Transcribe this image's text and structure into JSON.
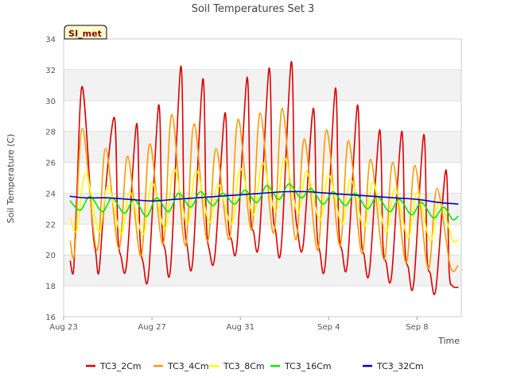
{
  "chart_data": {
    "type": "line",
    "title": "Soil Temperatures Set 3",
    "xlabel": "Time",
    "ylabel": "Soil Temperature (C)",
    "badge": "SI_met",
    "xlim": [
      0,
      18
    ],
    "ylim": [
      16,
      34
    ],
    "x_ticks": [
      {
        "value": 0,
        "label": "Aug 23"
      },
      {
        "value": 4,
        "label": "Aug 27"
      },
      {
        "value": 8,
        "label": "Aug 31"
      },
      {
        "value": 12,
        "label": "Sep 4"
      },
      {
        "value": 16,
        "label": "Sep 8"
      }
    ],
    "y_ticks": [
      16,
      18,
      20,
      22,
      24,
      26,
      28,
      30,
      32,
      34
    ],
    "grid": true,
    "legend_position": "bottom",
    "series": [
      {
        "name": "TC3_2Cm",
        "color": "#dd0000",
        "x": [
          0.3,
          0.45,
          0.6,
          0.85,
          1.3,
          1.45,
          1.6,
          1.85,
          2.3,
          2.45,
          2.6,
          2.85,
          3.3,
          3.45,
          3.6,
          3.85,
          4.3,
          4.45,
          4.6,
          4.85,
          5.3,
          5.45,
          5.6,
          5.85,
          6.3,
          6.45,
          6.6,
          6.85,
          7.3,
          7.45,
          7.6,
          7.85,
          8.3,
          8.45,
          8.6,
          8.85,
          9.3,
          9.45,
          9.6,
          9.85,
          10.3,
          10.45,
          10.6,
          10.85,
          11.3,
          11.45,
          11.6,
          11.85,
          12.3,
          12.45,
          12.6,
          12.85,
          13.3,
          13.45,
          13.6,
          13.85,
          14.3,
          14.45,
          14.6,
          14.85,
          15.3,
          15.45,
          15.6,
          15.85,
          16.3,
          16.45,
          16.6,
          16.85,
          17.3,
          17.45,
          17.6,
          17.85
        ],
        "values": [
          19.6,
          19.0,
          24.0,
          30.9,
          22.0,
          20.2,
          18.9,
          23.5,
          28.9,
          21.5,
          19.9,
          19.4,
          28.5,
          21.3,
          19.5,
          18.8,
          29.7,
          22.0,
          20.3,
          19.3,
          32.2,
          23.0,
          20.5,
          19.7,
          31.4,
          22.5,
          20.3,
          20.0,
          29.2,
          22.3,
          21.0,
          20.7,
          31.5,
          23.0,
          21.5,
          20.9,
          32.1,
          23.5,
          21.5,
          20.5,
          32.5,
          24.0,
          21.5,
          20.7,
          29.5,
          22.0,
          20.2,
          19.5,
          30.8,
          22.0,
          20.3,
          19.5,
          29.7,
          21.7,
          20.0,
          19.0,
          28.1,
          20.8,
          19.5,
          18.7,
          28.0,
          20.5,
          19.2,
          18.2,
          27.8,
          20.0,
          18.8,
          17.8,
          25.5,
          19.0,
          18.0,
          17.9
        ]
      },
      {
        "name": "TC3_4Cm",
        "color": "#ff9900",
        "x": [
          0.3,
          0.5,
          0.85,
          1.5,
          1.9,
          2.5,
          2.9,
          3.5,
          3.9,
          4.5,
          4.9,
          5.5,
          5.9,
          6.5,
          6.9,
          7.5,
          7.9,
          8.5,
          8.9,
          9.5,
          9.9,
          10.5,
          10.9,
          11.5,
          11.9,
          12.5,
          12.9,
          13.5,
          13.9,
          14.5,
          14.9,
          15.5,
          15.9,
          16.5,
          16.9,
          17.5,
          17.85
        ],
        "values": [
          20.9,
          20.2,
          28.2,
          20.3,
          26.9,
          20.4,
          26.4,
          19.9,
          27.2,
          20.7,
          29.1,
          20.6,
          28.5,
          20.9,
          26.9,
          21.0,
          28.8,
          21.6,
          29.2,
          21.4,
          29.5,
          21.0,
          27.5,
          20.3,
          28.1,
          20.6,
          27.4,
          20.1,
          26.2,
          19.7,
          26.0,
          19.5,
          25.8,
          19.1,
          24.3,
          19.3,
          19.3
        ]
      },
      {
        "name": "TC3_8Cm",
        "color": "#ffff00",
        "x": [
          0.3,
          0.6,
          1.0,
          1.6,
          2.0,
          2.6,
          3.0,
          3.6,
          4.0,
          4.6,
          5.0,
          5.6,
          6.0,
          6.6,
          7.0,
          7.6,
          8.0,
          8.6,
          9.0,
          9.6,
          10.0,
          10.6,
          11.0,
          11.6,
          12.0,
          12.6,
          13.0,
          13.6,
          14.0,
          14.6,
          15.0,
          15.6,
          16.0,
          16.6,
          17.0,
          17.6,
          17.85
        ],
        "values": [
          22.4,
          21.6,
          25.3,
          21.5,
          24.5,
          21.4,
          24.1,
          21.3,
          24.7,
          21.7,
          25.6,
          22.0,
          25.5,
          22.1,
          24.6,
          22.0,
          25.6,
          22.6,
          26.0,
          22.8,
          26.3,
          22.7,
          25.4,
          22.2,
          25.2,
          22.0,
          24.9,
          21.8,
          24.7,
          21.5,
          24.3,
          21.1,
          24.1,
          20.9,
          23.5,
          21.0,
          21.0
        ]
      },
      {
        "name": "TC3_16Cm",
        "color": "#00ee00",
        "x": [
          0.3,
          0.75,
          1.2,
          1.75,
          2.2,
          2.75,
          3.2,
          3.75,
          4.2,
          4.75,
          5.2,
          5.75,
          6.2,
          6.75,
          7.2,
          7.75,
          8.2,
          8.75,
          9.2,
          9.75,
          10.2,
          10.75,
          11.2,
          11.75,
          12.2,
          12.75,
          13.2,
          13.75,
          14.2,
          14.75,
          15.2,
          15.75,
          16.2,
          16.75,
          17.2,
          17.6,
          17.85
        ],
        "values": [
          23.5,
          22.9,
          23.8,
          22.8,
          23.7,
          22.7,
          23.6,
          22.5,
          23.7,
          22.8,
          24.0,
          23.1,
          24.1,
          23.2,
          24.0,
          23.3,
          24.2,
          23.4,
          24.5,
          23.6,
          24.6,
          23.7,
          24.3,
          23.3,
          24.1,
          23.2,
          24.0,
          23.0,
          23.8,
          22.8,
          23.6,
          22.6,
          23.4,
          22.4,
          23.1,
          22.3,
          22.5
        ]
      },
      {
        "name": "TC3_32Cm",
        "color": "#0000cc",
        "x": [
          0.3,
          1.0,
          2.0,
          3.0,
          4.0,
          5.0,
          6.0,
          7.0,
          8.0,
          9.0,
          10.0,
          11.0,
          12.0,
          13.0,
          14.0,
          15.0,
          16.0,
          17.0,
          17.85
        ],
        "values": [
          23.8,
          23.7,
          23.7,
          23.6,
          23.5,
          23.6,
          23.7,
          23.8,
          23.9,
          24.0,
          24.1,
          24.1,
          24.0,
          23.9,
          23.8,
          23.7,
          23.6,
          23.4,
          23.3
        ]
      }
    ]
  }
}
